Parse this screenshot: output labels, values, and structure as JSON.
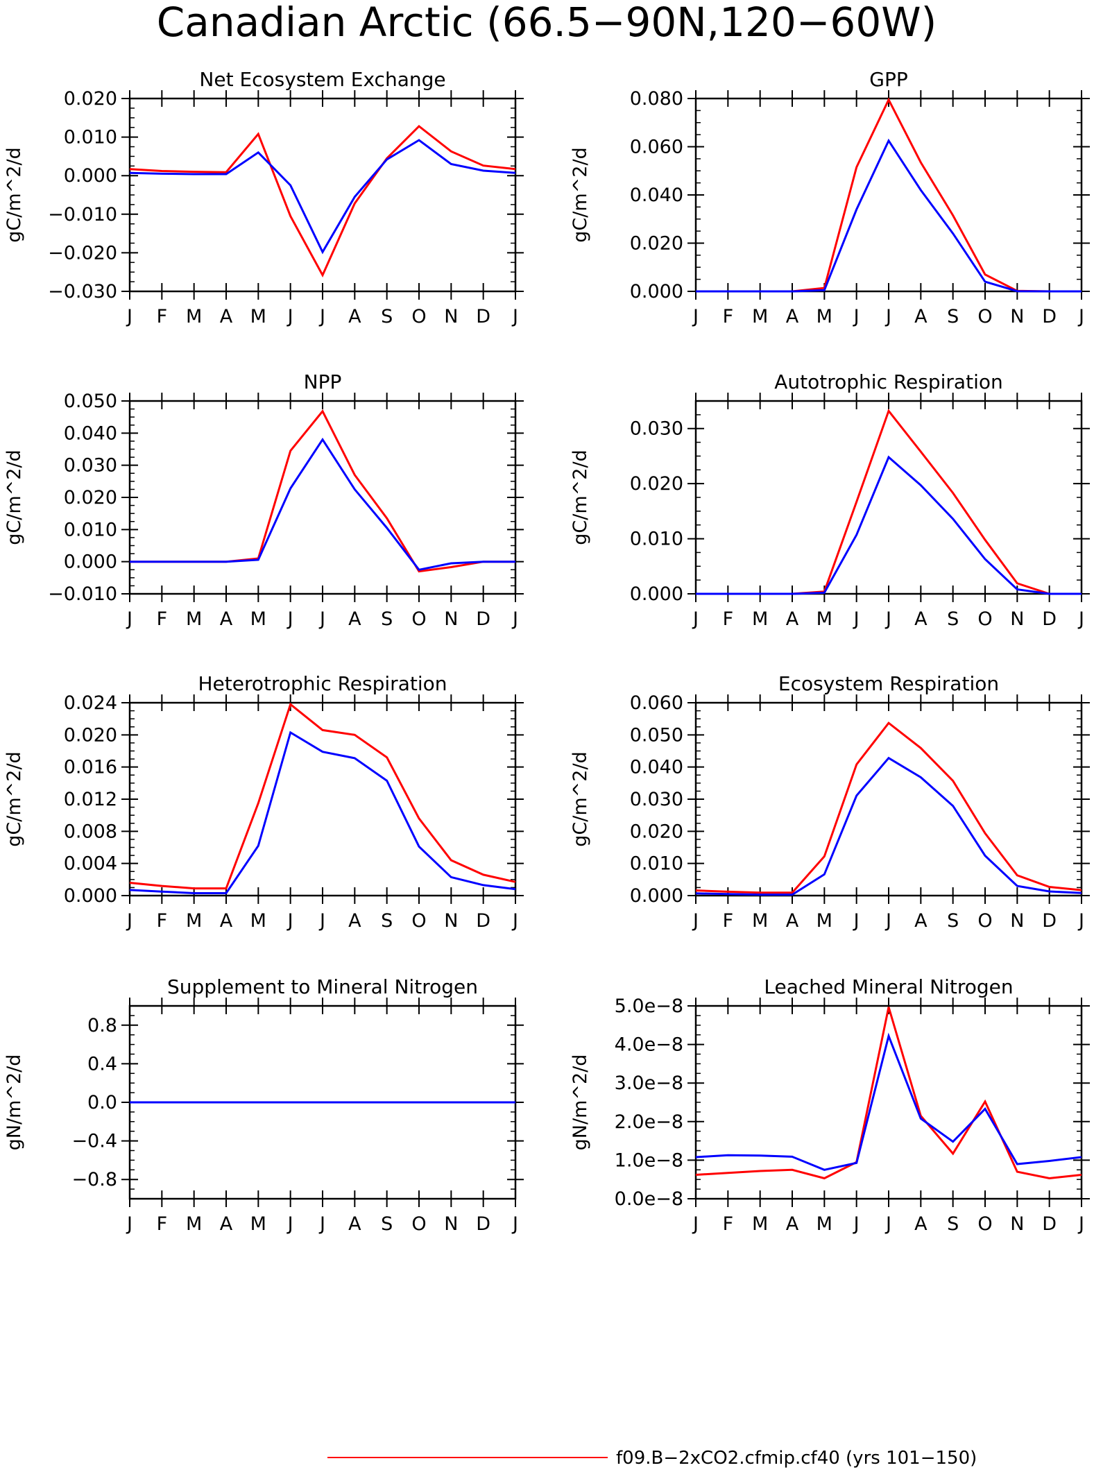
{
  "figure_title": "Canadian Arctic (66.5−90N,120−60W)",
  "months": [
    "J",
    "F",
    "M",
    "A",
    "M",
    "J",
    "J",
    "A",
    "S",
    "O",
    "N",
    "D",
    "J"
  ],
  "colors": {
    "case": "#ff0000",
    "control": "#0000ff"
  },
  "legend": {
    "case_label": "f09.B−2xCO2.cfmip.cf40 (yrs 101−150)"
  },
  "chart_data": [
    {
      "type": "line",
      "title": "Net Ecosystem Exchange",
      "ylabel": "gC/m^2/d",
      "ylim": [
        -0.03,
        0.02
      ],
      "yticks": [
        {
          "v": 0.02,
          "label": "0.020"
        },
        {
          "v": 0.01,
          "label": "0.010"
        },
        {
          "v": 0.0,
          "label": "0.000"
        },
        {
          "v": -0.01,
          "label": "−0.010"
        },
        {
          "v": -0.02,
          "label": "−0.020"
        },
        {
          "v": -0.03,
          "label": "−0.030"
        }
      ],
      "series": [
        {
          "color": "red",
          "values": [
            0.0017,
            0.0012,
            0.001,
            0.0009,
            0.0108,
            -0.0105,
            -0.0258,
            -0.0072,
            0.0045,
            0.0128,
            0.0063,
            0.0026,
            0.0017
          ]
        },
        {
          "color": "blue",
          "values": [
            0.0007,
            0.0005,
            0.0004,
            0.0004,
            0.006,
            -0.0025,
            -0.0198,
            -0.0055,
            0.0042,
            0.0092,
            0.003,
            0.0013,
            0.0007
          ]
        }
      ]
    },
    {
      "type": "line",
      "title": "GPP",
      "ylabel": "gC/m^2/d",
      "ylim": [
        0.0,
        0.08
      ],
      "yticks": [
        {
          "v": 0.08,
          "label": "0.080"
        },
        {
          "v": 0.06,
          "label": "0.060"
        },
        {
          "v": 0.04,
          "label": "0.040"
        },
        {
          "v": 0.02,
          "label": "0.020"
        },
        {
          "v": 0.0,
          "label": "0.000"
        }
      ],
      "series": [
        {
          "color": "red",
          "values": [
            0.0,
            0.0,
            0.0,
            0.0,
            0.0014,
            0.0515,
            0.0795,
            0.0535,
            0.0315,
            0.007,
            0.0002,
            0.0,
            0.0
          ]
        },
        {
          "color": "blue",
          "values": [
            0.0,
            0.0,
            0.0,
            0.0,
            0.0005,
            0.034,
            0.0625,
            0.042,
            0.024,
            0.004,
            0.0001,
            0.0,
            0.0
          ]
        }
      ]
    },
    {
      "type": "line",
      "title": "NPP",
      "ylabel": "gC/m^2/d",
      "ylim": [
        -0.01,
        0.05
      ],
      "yticks": [
        {
          "v": 0.05,
          "label": "0.050"
        },
        {
          "v": 0.04,
          "label": "0.040"
        },
        {
          "v": 0.03,
          "label": "0.030"
        },
        {
          "v": 0.02,
          "label": "0.020"
        },
        {
          "v": 0.01,
          "label": "0.010"
        },
        {
          "v": 0.0,
          "label": "0.000"
        },
        {
          "v": -0.01,
          "label": "−0.010"
        }
      ],
      "series": [
        {
          "color": "red",
          "values": [
            0.0,
            0.0,
            0.0,
            0.0,
            0.001,
            0.0345,
            0.0468,
            0.027,
            0.0135,
            -0.003,
            -0.0017,
            0.0,
            0.0
          ]
        },
        {
          "color": "blue",
          "values": [
            0.0,
            0.0,
            0.0,
            0.0,
            0.0006,
            0.0228,
            0.038,
            0.0225,
            0.0105,
            -0.0025,
            -0.0005,
            0.0,
            0.0
          ]
        }
      ]
    },
    {
      "type": "line",
      "title": "Autotrophic Respiration",
      "ylabel": "gC/m^2/d",
      "ylim": [
        0.0,
        0.035
      ],
      "yticks": [
        {
          "v": 0.03,
          "label": "0.030"
        },
        {
          "v": 0.02,
          "label": "0.020"
        },
        {
          "v": 0.01,
          "label": "0.010"
        },
        {
          "v": 0.0,
          "label": "0.000"
        }
      ],
      "series": [
        {
          "color": "red",
          "values": [
            0.0,
            0.0,
            0.0,
            0.0,
            0.0004,
            0.0167,
            0.0332,
            0.0258,
            0.0183,
            0.0098,
            0.0019,
            0.0,
            0.0
          ]
        },
        {
          "color": "blue",
          "values": [
            0.0,
            0.0,
            0.0,
            0.0,
            0.0002,
            0.0107,
            0.0248,
            0.0197,
            0.0136,
            0.0063,
            0.0008,
            0.0,
            0.0
          ]
        }
      ]
    },
    {
      "type": "line",
      "title": "Heterotrophic Respiration",
      "ylabel": "gC/m^2/d",
      "ylim": [
        0.0,
        0.024
      ],
      "yticks": [
        {
          "v": 0.024,
          "label": "0.024"
        },
        {
          "v": 0.02,
          "label": "0.020"
        },
        {
          "v": 0.016,
          "label": "0.016"
        },
        {
          "v": 0.012,
          "label": "0.012"
        },
        {
          "v": 0.008,
          "label": "0.008"
        },
        {
          "v": 0.004,
          "label": "0.004"
        },
        {
          "v": 0.0,
          "label": "0.000"
        }
      ],
      "series": [
        {
          "color": "red",
          "values": [
            0.0016,
            0.0012,
            0.0009,
            0.0009,
            0.0115,
            0.0238,
            0.0206,
            0.02,
            0.0172,
            0.0096,
            0.0044,
            0.0026,
            0.0017
          ]
        },
        {
          "color": "blue",
          "values": [
            0.0007,
            0.0005,
            0.0003,
            0.0003,
            0.0062,
            0.0203,
            0.0179,
            0.0171,
            0.0143,
            0.0061,
            0.0023,
            0.0013,
            0.0008
          ]
        }
      ]
    },
    {
      "type": "line",
      "title": "Ecosystem Respiration",
      "ylabel": "gC/m^2/d",
      "ylim": [
        0.0,
        0.06
      ],
      "yticks": [
        {
          "v": 0.06,
          "label": "0.060"
        },
        {
          "v": 0.05,
          "label": "0.050"
        },
        {
          "v": 0.04,
          "label": "0.040"
        },
        {
          "v": 0.03,
          "label": "0.030"
        },
        {
          "v": 0.02,
          "label": "0.020"
        },
        {
          "v": 0.01,
          "label": "0.010"
        },
        {
          "v": 0.0,
          "label": "0.000"
        }
      ],
      "series": [
        {
          "color": "red",
          "values": [
            0.0016,
            0.0012,
            0.0009,
            0.0009,
            0.0122,
            0.0408,
            0.0537,
            0.0459,
            0.0357,
            0.0194,
            0.0063,
            0.0027,
            0.0017
          ]
        },
        {
          "color": "blue",
          "values": [
            0.0007,
            0.0005,
            0.0003,
            0.0003,
            0.0066,
            0.0311,
            0.0428,
            0.0368,
            0.0279,
            0.0124,
            0.003,
            0.0013,
            0.0008
          ]
        }
      ]
    },
    {
      "type": "line",
      "title": "Supplement to Mineral Nitrogen",
      "ylabel": "gN/m^2/d",
      "ylim": [
        -1.0,
        1.0
      ],
      "yticks": [
        {
          "v": 0.8,
          "label": "0.8"
        },
        {
          "v": 0.4,
          "label": "0.4"
        },
        {
          "v": 0.0,
          "label": "0.0"
        },
        {
          "v": -0.4,
          "label": "−0.4"
        },
        {
          "v": -0.8,
          "label": "−0.8"
        }
      ],
      "series": [
        {
          "color": "red",
          "values": [
            0,
            0,
            0,
            0,
            0,
            0,
            0,
            0,
            0,
            0,
            0,
            0,
            0
          ]
        },
        {
          "color": "blue",
          "values": [
            0,
            0,
            0,
            0,
            0,
            0,
            0,
            0,
            0,
            0,
            0,
            0,
            0
          ]
        }
      ]
    },
    {
      "type": "line",
      "title": "Leached Mineral Nitrogen",
      "ylabel": "gN/m^2/d",
      "ylim": [
        0.0,
        5e-08
      ],
      "yticks": [
        {
          "v": 5e-08,
          "label": "5.0e−8"
        },
        {
          "v": 4e-08,
          "label": "4.0e−8"
        },
        {
          "v": 3e-08,
          "label": "3.0e−8"
        },
        {
          "v": 2e-08,
          "label": "2.0e−8"
        },
        {
          "v": 1e-08,
          "label": "1.0e−8"
        },
        {
          "v": 0.0,
          "label": "0.0e−8"
        }
      ],
      "series": [
        {
          "color": "red",
          "values": [
            6.2e-09,
            6.7e-09,
            7.2e-09,
            7.5e-09,
            5.3e-09,
            9.5e-09,
            4.97e-08,
            2.15e-08,
            1.17e-08,
            2.52e-08,
            7e-09,
            5.3e-09,
            6.2e-09
          ]
        },
        {
          "color": "blue",
          "values": [
            1.08e-08,
            1.13e-08,
            1.12e-08,
            1.09e-08,
            7.5e-09,
            9.3e-09,
            4.22e-08,
            2.08e-08,
            1.48e-08,
            2.33e-08,
            9e-09,
            9.8e-09,
            1.08e-08
          ]
        }
      ]
    }
  ]
}
